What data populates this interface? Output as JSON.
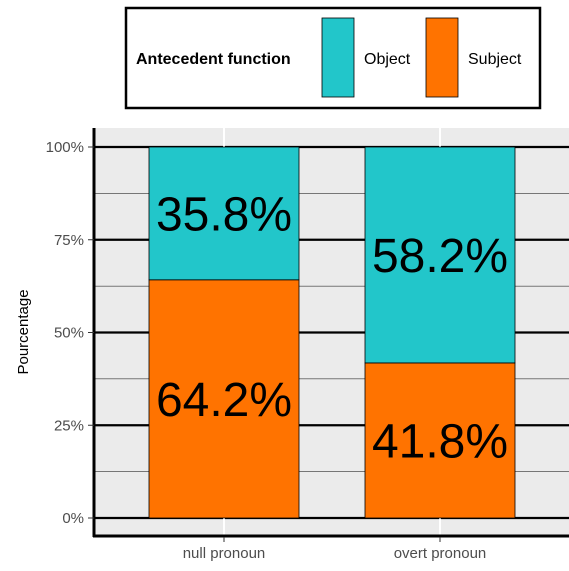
{
  "chart_data": {
    "type": "bar",
    "stacked": true,
    "categories": [
      "null pronoun",
      "overt pronoun"
    ],
    "series": [
      {
        "name": "Subject",
        "color": "#ff7300",
        "values": [
          64.2,
          41.8
        ]
      },
      {
        "name": "Object",
        "color": "#22c6ca",
        "values": [
          35.8,
          58.2
        ]
      }
    ],
    "data_labels": [
      {
        "category": "null pronoun",
        "series": "Object",
        "text": "35.8%"
      },
      {
        "category": "null pronoun",
        "series": "Subject",
        "text": "64.2%"
      },
      {
        "category": "overt pronoun",
        "series": "Object",
        "text": "58.2%"
      },
      {
        "category": "overt pronoun",
        "series": "Subject",
        "text": "41.8%"
      }
    ],
    "xlabel": "",
    "ylabel": "Pourcentage",
    "ylim": [
      0,
      100
    ],
    "yticks": [
      0,
      25,
      50,
      75,
      100
    ],
    "ytick_labels": [
      "0%",
      "25%",
      "50%",
      "75%",
      "100%"
    ],
    "grid": true,
    "legend": {
      "title": "Antecedent function",
      "placement": "top",
      "entries": [
        {
          "label": "Object",
          "color": "#22c6ca"
        },
        {
          "label": "Subject",
          "color": "#ff7300"
        }
      ]
    }
  }
}
